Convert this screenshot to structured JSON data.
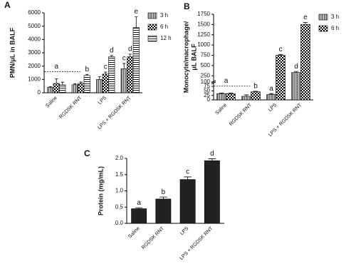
{
  "chart_data": [
    {
      "type": "bar",
      "panel": "A",
      "ylabel": [
        "PMN/μL in BALF"
      ],
      "categories": [
        "Saline",
        "RGDSK RNT",
        "LPS",
        "LPS + RGDSK RNT"
      ],
      "series": [
        {
          "name": "3 h",
          "color": "#555555",
          "pattern": "vertical",
          "values": [
            400,
            600,
            1000,
            1800
          ],
          "errors": [
            60,
            80,
            200,
            400
          ],
          "letters": [
            null,
            null,
            null,
            "c"
          ]
        },
        {
          "name": "6 h",
          "color": "#000000",
          "pattern": "checker",
          "values": [
            700,
            700,
            1400,
            2700
          ],
          "errors": [
            350,
            100,
            150,
            200
          ],
          "letters": [
            null,
            null,
            "c",
            "d"
          ]
        },
        {
          "name": "12 h",
          "color": "#000000",
          "pattern": "horizontal",
          "values": [
            600,
            1300,
            2700,
            4900
          ],
          "errors": [
            200,
            80,
            100,
            800
          ],
          "letters": [
            null,
            "b",
            "d",
            "e"
          ]
        }
      ],
      "group_letters": [
        "a",
        null,
        null,
        null
      ],
      "ylim": [
        0,
        6000
      ],
      "yticks": [
        0,
        1000,
        2000,
        3000,
        4000,
        5000,
        6000
      ],
      "legend": "right"
    },
    {
      "type": "bar",
      "panel": "B",
      "ylabel": [
        "Monocyte/macrophage/",
        "μL BALF"
      ],
      "categories": [
        "Saline",
        "RGDSK RNT",
        "LPS",
        "LPS + RGDSK RNT"
      ],
      "series": [
        {
          "name": "3 h",
          "color": "#555555",
          "pattern": "vertical",
          "values": [
            35,
            20,
            30,
            330
          ],
          "errors": [
            3,
            8,
            5,
            25
          ],
          "letters": [
            null,
            null,
            "a",
            "d"
          ]
        },
        {
          "name": "6 h",
          "color": "#000000",
          "pattern": "checker",
          "values": [
            35,
            45,
            750,
            1500
          ],
          "errors": [
            3,
            3,
            20,
            50
          ],
          "letters": [
            null,
            "b",
            "c",
            "e"
          ]
        }
      ],
      "group_letters": [
        "a",
        null,
        null,
        null
      ],
      "ylim": [
        0,
        1750
      ],
      "ybreak": 100,
      "yticks": [
        0,
        25,
        50,
        75,
        100,
        250,
        500,
        750,
        1000,
        1250,
        1500,
        1750
      ],
      "legend": "right"
    },
    {
      "type": "bar",
      "panel": "C",
      "ylabel": [
        "Protein (mg/mL)"
      ],
      "categories": [
        "Saline",
        "RGDSK RNT",
        "LPS",
        "LPS + RGDSK RNT"
      ],
      "values": [
        0.45,
        0.75,
        1.35,
        1.93
      ],
      "errors": [
        0.03,
        0.06,
        0.08,
        0.06
      ],
      "letters": [
        "a",
        "b",
        "c",
        "d"
      ],
      "color": "#222222",
      "ylim": [
        0,
        2
      ],
      "yticks": [
        {
          "value": 0,
          "label": "0.0"
        },
        0.5,
        {
          "value": 1,
          "label": "1.0"
        },
        1.5,
        {
          "value": 2,
          "label": "2.0"
        }
      ]
    }
  ]
}
